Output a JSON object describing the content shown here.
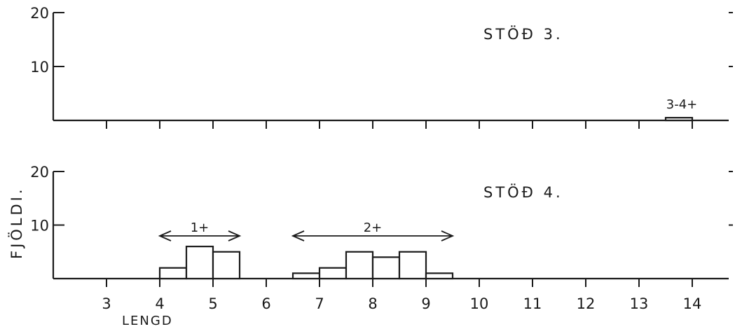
{
  "chart_data": [
    {
      "type": "bar",
      "title": "STÖÐ 3.",
      "xlabel": "",
      "ylabel": "",
      "xlim": [
        2,
        15
      ],
      "ylim": [
        0,
        20
      ],
      "yticks": [
        "10",
        "20"
      ],
      "xticks": [],
      "bins": [
        {
          "x_start": 13.5,
          "x_end": 14.0,
          "value": 0.5
        }
      ],
      "annotations": [
        {
          "label": "3-4+",
          "x_start": 13.5,
          "x_end": 14.0
        }
      ]
    },
    {
      "type": "bar",
      "title": "STÖÐ 4.",
      "xlabel": "LENGD",
      "ylabel": "FJÖLDI.",
      "xlim": [
        2,
        15
      ],
      "ylim": [
        0,
        20
      ],
      "yticks": [
        "10",
        "20"
      ],
      "xticks": [
        "3",
        "4",
        "5",
        "6",
        "7",
        "8",
        "9",
        "10",
        "11",
        "12",
        "13",
        "14"
      ],
      "bins": [
        {
          "x_start": 4.0,
          "x_end": 4.5,
          "value": 2
        },
        {
          "x_start": 4.5,
          "x_end": 5.0,
          "value": 6
        },
        {
          "x_start": 5.0,
          "x_end": 5.5,
          "value": 5
        },
        {
          "x_start": 6.5,
          "x_end": 7.0,
          "value": 1
        },
        {
          "x_start": 7.0,
          "x_end": 7.5,
          "value": 2
        },
        {
          "x_start": 7.5,
          "x_end": 8.0,
          "value": 5
        },
        {
          "x_start": 8.0,
          "x_end": 8.5,
          "value": 4
        },
        {
          "x_start": 8.5,
          "x_end": 9.0,
          "value": 5
        },
        {
          "x_start": 9.0,
          "x_end": 9.5,
          "value": 1
        }
      ],
      "annotations": [
        {
          "label": "1+",
          "x_start": 4.0,
          "x_end": 5.5
        },
        {
          "label": "2+",
          "x_start": 6.5,
          "x_end": 9.5
        }
      ]
    }
  ]
}
